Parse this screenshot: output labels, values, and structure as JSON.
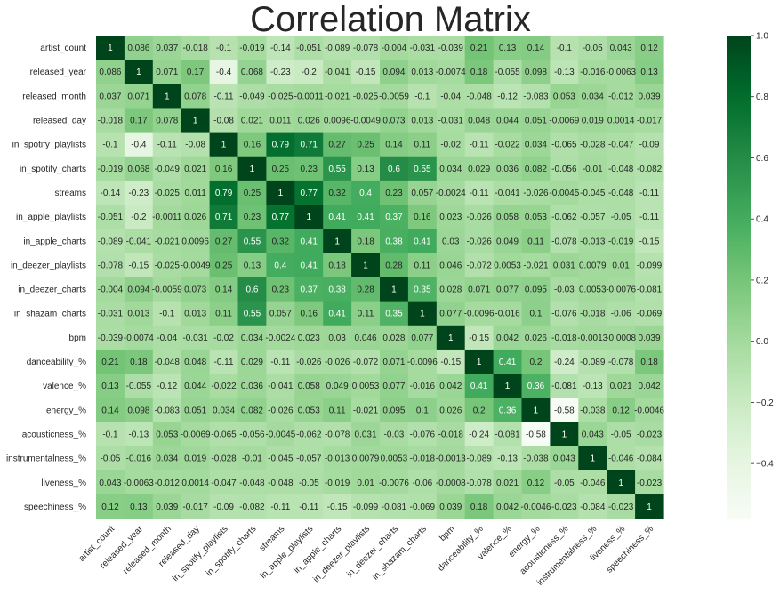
{
  "chart_data": {
    "type": "heatmap",
    "title": "Correlation Matrix",
    "variables": [
      "artist_count",
      "released_year",
      "released_month",
      "released_day",
      "in_spotify_playlists",
      "in_spotify_charts",
      "streams",
      "in_apple_playlists",
      "in_apple_charts",
      "in_deezer_playlists",
      "in_deezer_charts",
      "in_shazam_charts",
      "bpm",
      "danceability_%",
      "valence_%",
      "energy_%",
      "acousticness_%",
      "instrumentalness_%",
      "liveness_%",
      "speechiness_%"
    ],
    "values": [
      [
        1,
        0.086,
        0.037,
        -0.018,
        -0.1,
        -0.019,
        -0.14,
        -0.051,
        -0.089,
        -0.078,
        -0.004,
        -0.031,
        -0.039,
        0.21,
        0.13,
        0.14,
        -0.1,
        -0.05,
        0.043,
        0.12
      ],
      [
        0.086,
        1,
        0.071,
        0.17,
        -0.4,
        0.068,
        -0.23,
        -0.2,
        -0.041,
        -0.15,
        0.094,
        0.013,
        -0.0074,
        0.18,
        -0.055,
        0.098,
        -0.13,
        -0.016,
        -0.0063,
        0.13
      ],
      [
        0.037,
        0.071,
        1,
        0.078,
        -0.11,
        -0.049,
        -0.025,
        -0.0011,
        -0.021,
        -0.025,
        -0.0059,
        -0.1,
        -0.04,
        -0.048,
        -0.12,
        -0.083,
        0.053,
        0.034,
        -0.012,
        0.039
      ],
      [
        -0.018,
        0.17,
        0.078,
        1,
        -0.08,
        0.021,
        0.011,
        0.026,
        0.0096,
        -0.0049,
        0.073,
        0.013,
        -0.031,
        0.048,
        0.044,
        0.051,
        -0.0069,
        0.019,
        0.0014,
        -0.017
      ],
      [
        -0.1,
        -0.4,
        -0.11,
        -0.08,
        1,
        0.16,
        0.79,
        0.71,
        0.27,
        0.25,
        0.14,
        0.11,
        -0.02,
        -0.11,
        -0.022,
        0.034,
        -0.065,
        -0.028,
        -0.047,
        -0.09
      ],
      [
        -0.019,
        0.068,
        -0.049,
        0.021,
        0.16,
        1,
        0.25,
        0.23,
        0.55,
        0.13,
        0.6,
        0.55,
        0.034,
        0.029,
        0.036,
        0.082,
        -0.056,
        -0.01,
        -0.048,
        -0.082
      ],
      [
        -0.14,
        -0.23,
        -0.025,
        0.011,
        0.79,
        0.25,
        1,
        0.77,
        0.32,
        0.4,
        0.23,
        0.057,
        -0.0024,
        -0.11,
        -0.041,
        -0.026,
        -0.0045,
        -0.045,
        -0.048,
        -0.11
      ],
      [
        -0.051,
        -0.2,
        -0.0011,
        0.026,
        0.71,
        0.23,
        0.77,
        1,
        0.41,
        0.41,
        0.37,
        0.16,
        0.023,
        -0.026,
        0.058,
        0.053,
        -0.062,
        -0.057,
        -0.05,
        -0.11
      ],
      [
        -0.089,
        -0.041,
        -0.021,
        0.0096,
        0.27,
        0.55,
        0.32,
        0.41,
        1,
        0.18,
        0.38,
        0.41,
        0.03,
        -0.026,
        0.049,
        0.11,
        -0.078,
        -0.013,
        -0.019,
        -0.15
      ],
      [
        -0.078,
        -0.15,
        -0.025,
        -0.0049,
        0.25,
        0.13,
        0.4,
        0.41,
        0.18,
        1,
        0.28,
        0.11,
        0.046,
        -0.072,
        0.0053,
        -0.021,
        0.031,
        0.0079,
        0.01,
        -0.099
      ],
      [
        -0.004,
        0.094,
        -0.0059,
        0.073,
        0.14,
        0.6,
        0.23,
        0.37,
        0.38,
        0.28,
        1,
        0.35,
        0.028,
        0.071,
        0.077,
        0.095,
        -0.03,
        0.0053,
        -0.0076,
        -0.081
      ],
      [
        -0.031,
        0.013,
        -0.1,
        0.013,
        0.11,
        0.55,
        0.057,
        0.16,
        0.41,
        0.11,
        0.35,
        1,
        0.077,
        -0.0096,
        -0.016,
        0.1,
        -0.076,
        -0.018,
        -0.06,
        -0.069
      ],
      [
        -0.039,
        -0.0074,
        -0.04,
        -0.031,
        -0.02,
        0.034,
        -0.0024,
        0.023,
        0.03,
        0.046,
        0.028,
        0.077,
        1,
        -0.15,
        0.042,
        0.026,
        -0.018,
        -0.0013,
        -0.0008,
        0.039
      ],
      [
        0.21,
        0.18,
        -0.048,
        0.048,
        -0.11,
        0.029,
        -0.11,
        -0.026,
        -0.026,
        -0.072,
        0.071,
        -0.0096,
        -0.15,
        1,
        0.41,
        0.2,
        -0.24,
        -0.089,
        -0.078,
        0.18
      ],
      [
        0.13,
        -0.055,
        -0.12,
        0.044,
        -0.022,
        0.036,
        -0.041,
        0.058,
        0.049,
        0.0053,
        0.077,
        -0.016,
        0.042,
        0.41,
        1,
        0.36,
        -0.081,
        -0.13,
        0.021,
        0.042
      ],
      [
        0.14,
        0.098,
        -0.083,
        0.051,
        0.034,
        0.082,
        -0.026,
        0.053,
        0.11,
        -0.021,
        0.095,
        0.1,
        0.026,
        0.2,
        0.36,
        1,
        -0.58,
        -0.038,
        0.12,
        -0.0046
      ],
      [
        -0.1,
        -0.13,
        0.053,
        -0.0069,
        -0.065,
        -0.056,
        -0.0045,
        -0.062,
        -0.078,
        0.031,
        -0.03,
        -0.076,
        -0.018,
        -0.24,
        -0.081,
        -0.58,
        1,
        0.043,
        -0.05,
        -0.023
      ],
      [
        -0.05,
        -0.016,
        0.034,
        0.019,
        -0.028,
        -0.01,
        -0.045,
        -0.057,
        -0.013,
        0.0079,
        0.0053,
        -0.018,
        -0.0013,
        -0.089,
        -0.13,
        -0.038,
        0.043,
        1,
        -0.046,
        -0.084
      ],
      [
        0.043,
        -0.0063,
        -0.012,
        0.0014,
        -0.047,
        -0.048,
        -0.048,
        -0.05,
        -0.019,
        0.01,
        -0.0076,
        -0.06,
        -0.0008,
        -0.078,
        0.021,
        0.12,
        -0.05,
        -0.046,
        1,
        -0.023
      ],
      [
        0.12,
        0.13,
        0.039,
        -0.017,
        -0.09,
        -0.082,
        -0.11,
        -0.11,
        -0.15,
        -0.099,
        -0.081,
        -0.069,
        0.039,
        0.18,
        0.042,
        -0.0046,
        -0.023,
        -0.084,
        -0.023,
        1
      ]
    ],
    "colormap": "Greens",
    "vmin": -0.58,
    "vmax": 1,
    "colorbar_ticks": [
      1.0,
      0.8,
      0.6,
      0.4,
      0.2,
      0.0,
      -0.2,
      -0.4
    ],
    "colorbar_tick_labels": [
      "1.0",
      "0.8",
      "0.6",
      "0.4",
      "0.2",
      "0.0",
      "−0.2",
      "−0.4"
    ],
    "colors": {
      "greens_low": "#f7fcf5",
      "greens_high": "#00441b",
      "text_dark": "#262626",
      "text_light": "#ffffff"
    }
  }
}
